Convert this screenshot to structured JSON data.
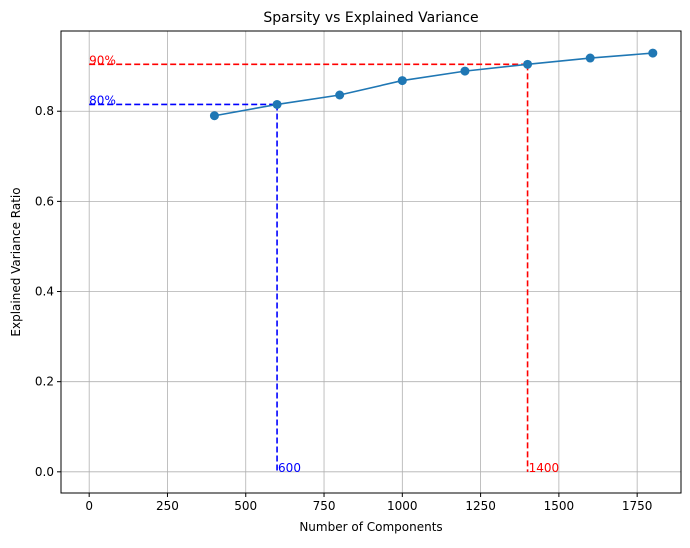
{
  "chart_data": {
    "type": "line",
    "title": "Sparsity vs Explained Variance",
    "xlabel": "Number of Components",
    "ylabel": "Explained Variance Ratio",
    "xlim": [
      -90,
      1890
    ],
    "ylim": [
      -0.047,
      0.978
    ],
    "xticks": [
      0,
      250,
      500,
      750,
      1000,
      1250,
      1500,
      1750
    ],
    "yticks": [
      0.0,
      0.2,
      0.4,
      0.6,
      0.8
    ],
    "ytick_labels": [
      "0.0",
      "0.2",
      "0.4",
      "0.6",
      "0.8"
    ],
    "grid": true,
    "series": [
      {
        "color": "#1f77b4",
        "marker": "circle",
        "x": [
          400,
          600,
          800,
          1000,
          1200,
          1400,
          1600,
          1800
        ],
        "y": [
          0.79,
          0.815,
          0.836,
          0.868,
          0.889,
          0.904,
          0.918,
          0.929
        ]
      }
    ],
    "annotations": [
      {
        "x": 600,
        "y": 0.815,
        "color": "#0000ff",
        "y_label": "80%",
        "x_label": "600"
      },
      {
        "x": 1400,
        "y": 0.904,
        "color": "#ff0000",
        "y_label": "90%",
        "x_label": "1400"
      }
    ]
  }
}
